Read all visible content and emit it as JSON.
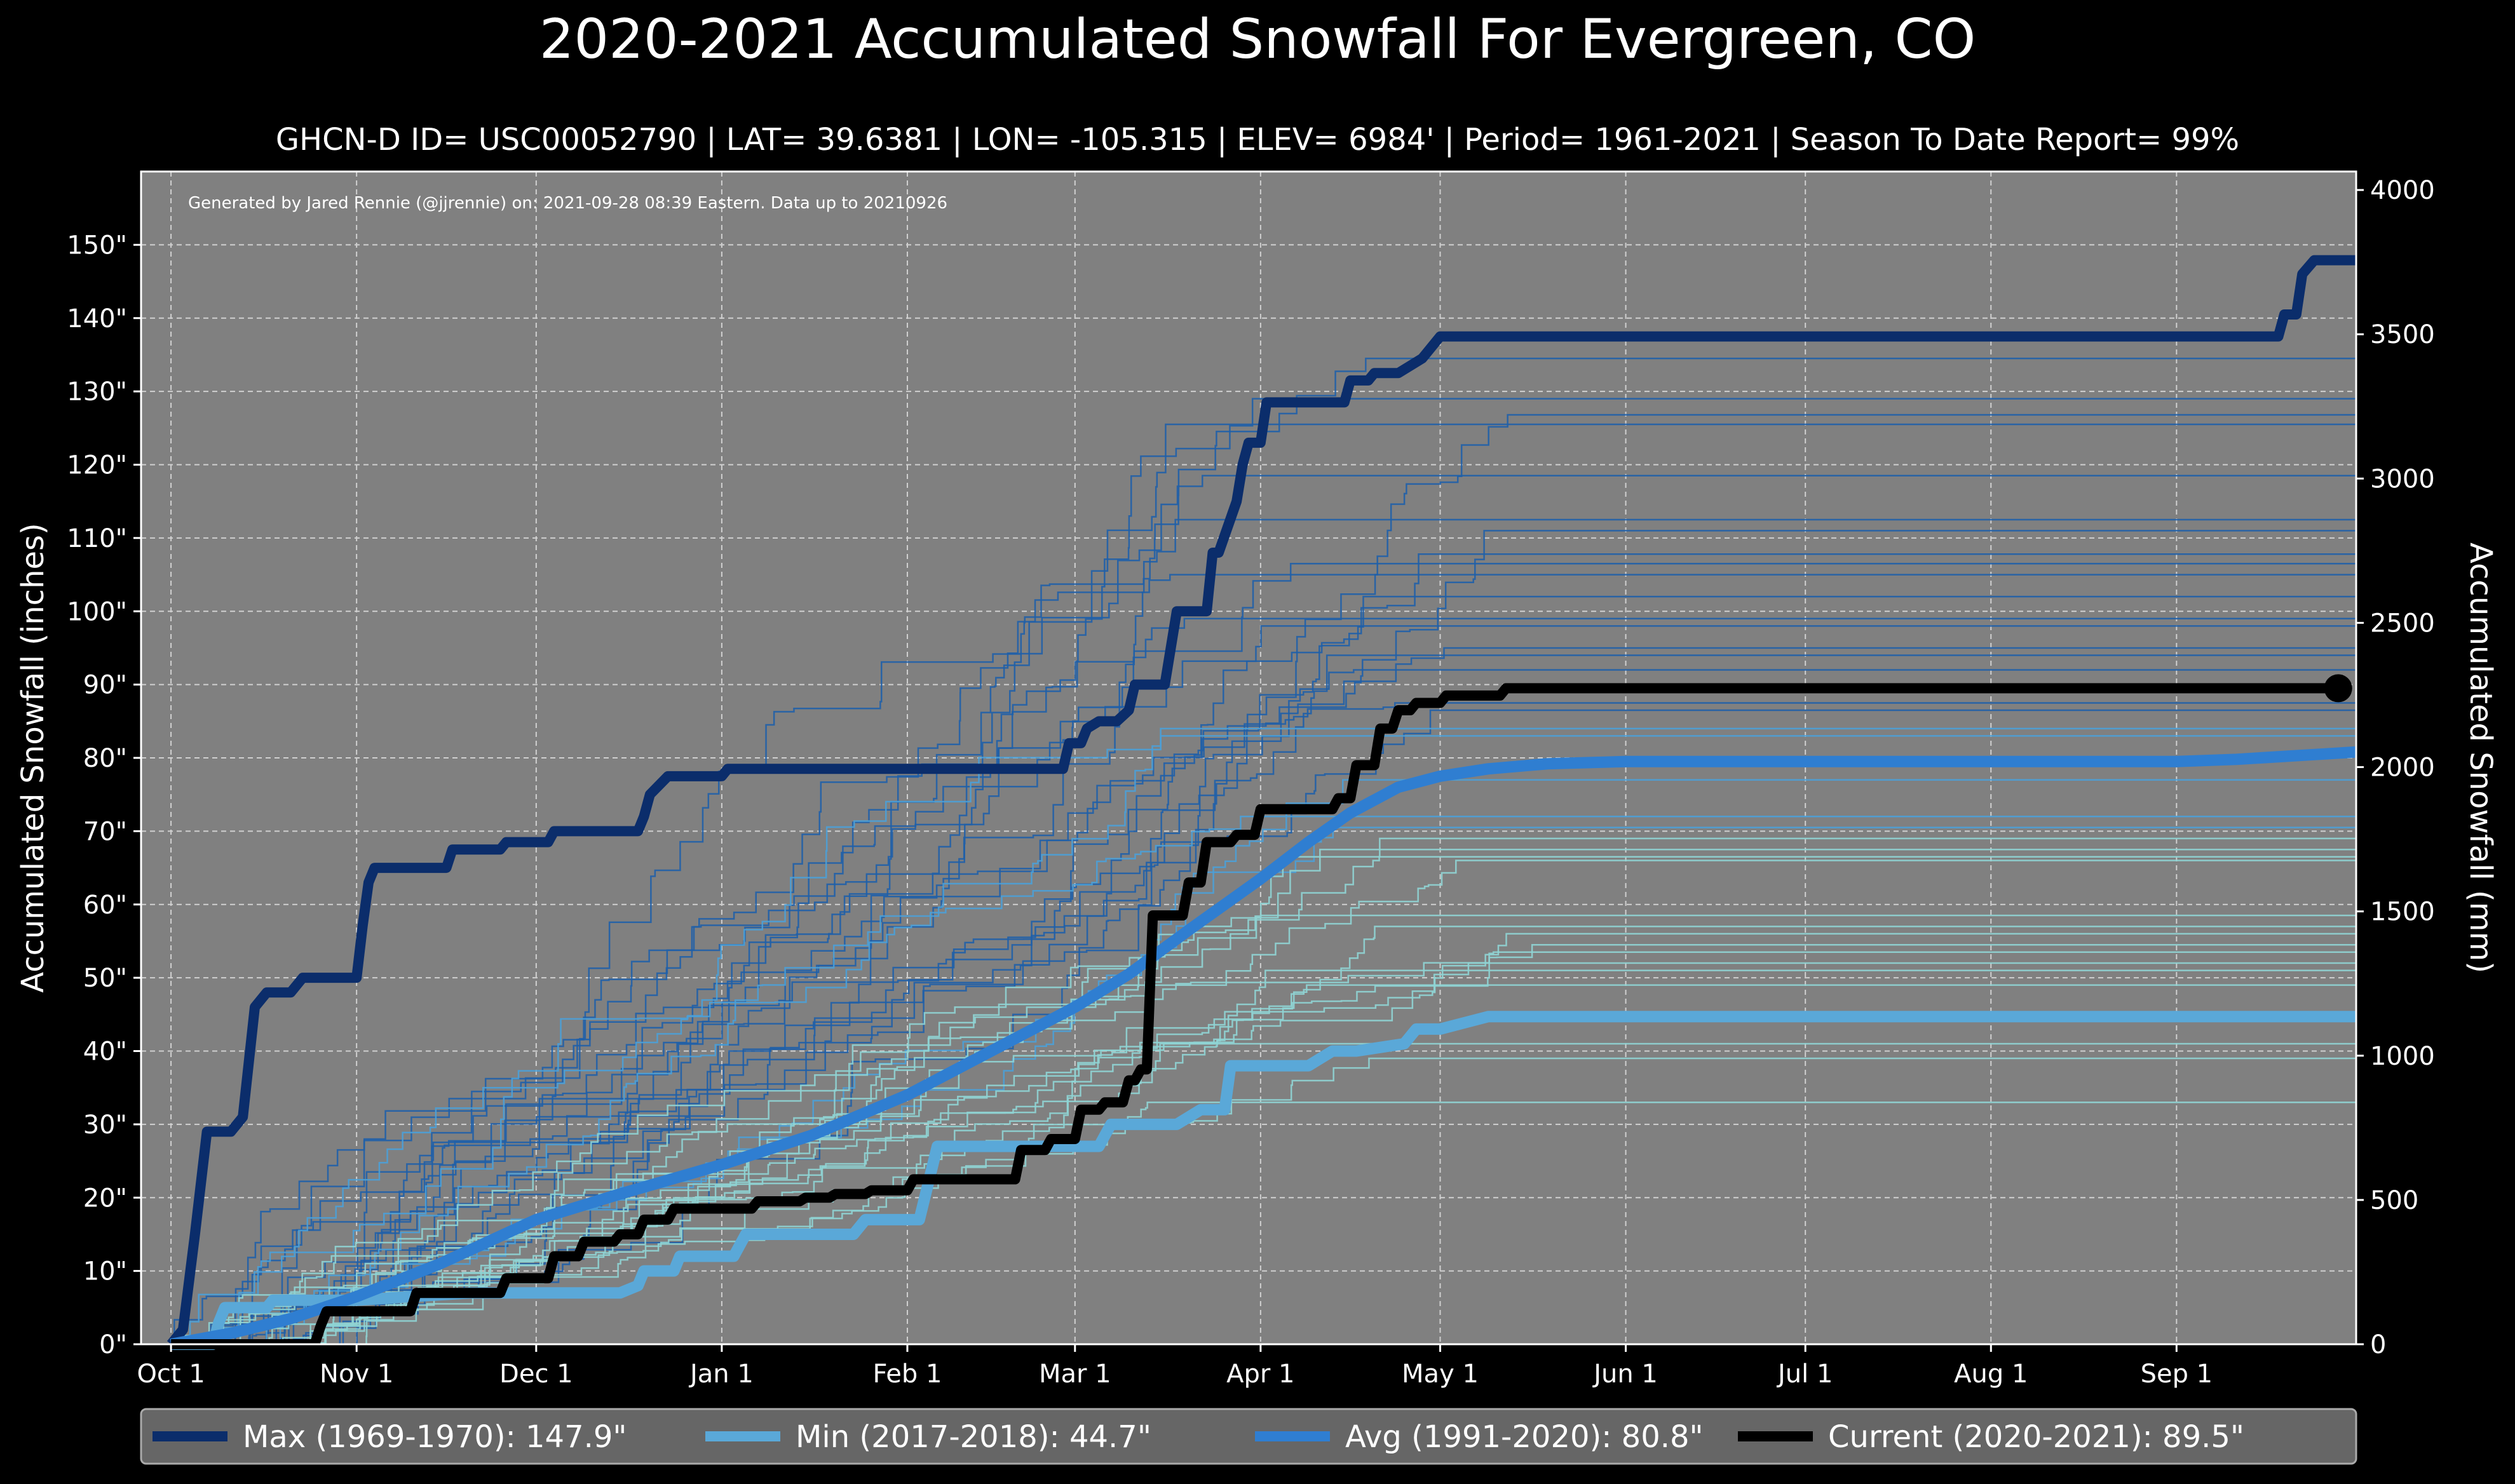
{
  "chart_data": {
    "type": "line",
    "title": "2020-2021 Accumulated Snowfall For Evergreen, CO",
    "subtitle": "GHCN-D ID= USC00052790 | LAT= 39.6381 | LON= -105.315 | ELEV= 6984' | Period= 1961-2021 | Season To Date Report= 99%",
    "credit": "Generated by Jared Rennie (@jjrennie) on: 2021-09-28 08:39 Eastern. Data up to 20210926",
    "ylabel": "Accumulated Snowfall (inches)",
    "ylabel_right": "Accumulated Snowfall (mm)",
    "xlim": [
      -5,
      365
    ],
    "ylim": [
      0,
      160
    ],
    "ylim_right": [
      0,
      4064
    ],
    "grid": true,
    "legend_position": "bottom",
    "x_ticks": [
      {
        "day": 0,
        "label": "Oct 1"
      },
      {
        "day": 31,
        "label": "Nov 1"
      },
      {
        "day": 61,
        "label": "Dec 1"
      },
      {
        "day": 92,
        "label": "Jan 1"
      },
      {
        "day": 123,
        "label": "Feb 1"
      },
      {
        "day": 151,
        "label": "Mar 1"
      },
      {
        "day": 182,
        "label": "Apr 1"
      },
      {
        "day": 212,
        "label": "May 1"
      },
      {
        "day": 243,
        "label": "Jun 1"
      },
      {
        "day": 273,
        "label": "Jul 1"
      },
      {
        "day": 304,
        "label": "Aug 1"
      },
      {
        "day": 335,
        "label": "Sep 1"
      }
    ],
    "y_ticks": [
      {
        "value": 0,
        "label": "0\""
      },
      {
        "value": 10,
        "label": "10\""
      },
      {
        "value": 20,
        "label": "20\""
      },
      {
        "value": 30,
        "label": "30\""
      },
      {
        "value": 40,
        "label": "40\""
      },
      {
        "value": 50,
        "label": "50\""
      },
      {
        "value": 60,
        "label": "60\""
      },
      {
        "value": 70,
        "label": "70\""
      },
      {
        "value": 80,
        "label": "80\""
      },
      {
        "value": 90,
        "label": "90\""
      },
      {
        "value": 100,
        "label": "100\""
      },
      {
        "value": 110,
        "label": "110\""
      },
      {
        "value": 120,
        "label": "120\""
      },
      {
        "value": 130,
        "label": "130\""
      },
      {
        "value": 140,
        "label": "140\""
      },
      {
        "value": 150,
        "label": "150\""
      }
    ],
    "y_ticks_right": [
      {
        "value": 0,
        "label": "0"
      },
      {
        "value": 500,
        "label": "500"
      },
      {
        "value": 1000,
        "label": "1000"
      },
      {
        "value": 1500,
        "label": "1500"
      },
      {
        "value": 2000,
        "label": "2000"
      },
      {
        "value": 2500,
        "label": "2500"
      },
      {
        "value": 3000,
        "label": "3000"
      },
      {
        "value": 3500,
        "label": "3500"
      },
      {
        "value": 4000,
        "label": "4000"
      }
    ],
    "background_season_finals": [
      129.0,
      134.5,
      126.8,
      125.5,
      118.5,
      112.5,
      111.0,
      107.8,
      106.5,
      105.0,
      102.0,
      99.0,
      98.0,
      95.0,
      94.0,
      92.0,
      87.5,
      86.5,
      84.0,
      83.0,
      77.0,
      72.0,
      70.5,
      69.0,
      67.5,
      66.5,
      66.0,
      58.5,
      57.0,
      56.0,
      54.5,
      53.5,
      52.0,
      51.0,
      49.0,
      41.0,
      39.0,
      33.0
    ],
    "series": [
      {
        "name": "Max (1969-1970)",
        "color": "#0b2d6b",
        "final": 147.9,
        "x": [
          0,
          2,
          4,
          6,
          10,
          12,
          14,
          16,
          20,
          22,
          31,
          32,
          33,
          34,
          46,
          47,
          55,
          56,
          63,
          64,
          78,
          79,
          80,
          83,
          92,
          93,
          149,
          150,
          152,
          153,
          155,
          158,
          160,
          161,
          166,
          167,
          168,
          173,
          174,
          175,
          178,
          179,
          180,
          182,
          183,
          185,
          196,
          197,
          200,
          201,
          204,
          205,
          209,
          212,
          352,
          353,
          355,
          356,
          358,
          360,
          365
        ],
        "values": [
          0,
          2,
          15,
          29,
          29,
          31,
          46,
          48,
          48,
          50,
          50,
          57,
          63,
          65,
          65,
          67.5,
          67.5,
          68.5,
          68.5,
          70,
          70,
          72,
          75,
          77.5,
          77.5,
          78.5,
          78.5,
          82,
          82,
          84,
          85,
          85,
          86.5,
          90,
          90,
          95,
          100,
          100,
          108,
          108,
          115,
          120,
          123,
          123,
          128.5,
          128.5,
          128.5,
          131.5,
          131.5,
          132.5,
          132.5,
          132.5,
          134.5,
          137.5,
          137.5,
          140.5,
          140.5,
          146,
          147.9,
          147.9,
          147.9
        ]
      },
      {
        "name": "Min (2017-2018)",
        "color": "#5aa8d8",
        "final": 44.7,
        "x": [
          0,
          7,
          8,
          9,
          16,
          17,
          31,
          40,
          50,
          75,
          78,
          79,
          84,
          85,
          94,
          96,
          114,
          116,
          125,
          128,
          155,
          157,
          168,
          172,
          176,
          177,
          190,
          194,
          198,
          206,
          208,
          212,
          220,
          365
        ],
        "values": [
          0,
          0,
          3,
          5,
          5,
          6,
          6,
          6.5,
          7,
          7,
          8,
          10,
          10,
          12,
          12,
          15,
          15,
          17,
          17,
          27,
          27,
          30,
          30,
          32,
          32,
          38,
          38,
          40,
          40,
          41,
          43,
          43,
          44.7,
          44.7
        ]
      },
      {
        "name": "Avg (1991-2020)",
        "color": "#2f7ed1",
        "final": 80.8,
        "x": [
          0,
          10,
          20,
          31,
          45,
          61,
          75,
          92,
          107,
          123,
          137,
          151,
          160,
          170,
          182,
          190,
          197,
          205,
          212,
          220,
          230,
          243,
          273,
          304,
          335,
          345,
          355,
          365
        ],
        "values": [
          0,
          1.5,
          3.5,
          6.5,
          11,
          17,
          20.5,
          24.5,
          28.5,
          34,
          40,
          46,
          50.5,
          56.5,
          63.5,
          68.5,
          72.5,
          76,
          77.5,
          78.5,
          79.2,
          79.5,
          79.5,
          79.5,
          79.5,
          79.8,
          80.3,
          80.8
        ]
      },
      {
        "name": "Current (2020-2021)",
        "color": "#000000",
        "final": 89.5,
        "x": [
          0,
          24,
          25,
          26,
          40,
          41,
          55,
          56,
          63,
          64,
          68,
          69,
          74,
          75,
          78,
          79,
          83,
          84,
          97,
          98,
          105,
          106,
          110,
          111,
          116,
          117,
          123,
          124,
          141,
          142,
          146,
          147,
          151,
          152,
          155,
          156,
          159,
          160,
          161,
          162,
          163,
          164,
          169,
          170,
          172,
          173,
          177,
          178,
          181,
          182,
          186,
          187,
          194,
          195,
          197,
          198,
          201,
          202,
          204,
          205,
          207,
          208,
          212,
          213,
          222,
          223,
          362
        ],
        "values": [
          0,
          0,
          2.5,
          4.5,
          4.5,
          7,
          7,
          9,
          9,
          12,
          12,
          14,
          14,
          15,
          15,
          17,
          17,
          18.5,
          18.5,
          19.5,
          19.5,
          20,
          20,
          20.5,
          20.5,
          21,
          21,
          22.5,
          22.5,
          26.5,
          26.5,
          28,
          28,
          32,
          32,
          33,
          33,
          36,
          36,
          37.5,
          37.5,
          58.5,
          58.5,
          63,
          63,
          68.5,
          68.5,
          69.5,
          69.5,
          73,
          73,
          73,
          73,
          74.5,
          74.5,
          79,
          79,
          84,
          84,
          86.5,
          86.5,
          87.5,
          87.5,
          88.5,
          88.5,
          89.5,
          89.5
        ]
      }
    ],
    "legend": [
      {
        "label": "Max (1969-1970):  147.9\"",
        "color": "#0b2d6b"
      },
      {
        "label": "Min (2017-2018):   44.7\"",
        "color": "#5aa8d8"
      },
      {
        "label": "Avg (1991-2020):   80.8\"",
        "color": "#2f7ed1"
      },
      {
        "label": "Current (2020-2021):   89.5\"",
        "color": "#000000"
      }
    ]
  }
}
